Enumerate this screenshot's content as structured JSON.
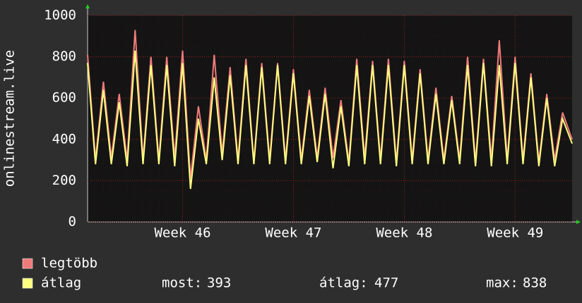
{
  "chart_data": {
    "type": "line",
    "y_label": "onlinestream.live",
    "x": [
      0,
      0.5,
      1,
      1.5,
      2,
      2.5,
      3,
      3.5,
      4,
      4.5,
      5,
      5.5,
      6,
      6.5,
      7,
      7.5,
      8,
      8.5,
      9,
      9.5,
      10,
      10.5,
      11,
      11.5,
      12,
      12.5,
      13,
      13.5,
      14,
      14.5,
      15,
      15.5,
      16,
      16.5,
      17,
      17.5,
      18,
      18.5,
      19,
      19.5,
      20,
      20.5,
      21,
      21.5,
      22,
      22.5,
      23,
      23.5,
      24,
      24.5,
      25,
      25.5,
      26,
      26.5,
      27,
      27.5,
      28,
      28.5,
      29,
      29.5,
      30,
      30.6
    ],
    "series": [
      {
        "name": "legtöbb",
        "color": "#f07a7a",
        "values": [
          810,
          300,
          680,
          310,
          620,
          300,
          930,
          300,
          800,
          300,
          800,
          310,
          830,
          210,
          560,
          300,
          810,
          330,
          750,
          300,
          790,
          290,
          770,
          300,
          770,
          300,
          740,
          300,
          640,
          310,
          650,
          310,
          590,
          290,
          790,
          310,
          780,
          300,
          790,
          290,
          780,
          300,
          740,
          300,
          650,
          300,
          610,
          300,
          800,
          290,
          790,
          300,
          880,
          300,
          800,
          300,
          720,
          290,
          620,
          300,
          530,
          400
        ]
      },
      {
        "name": "átlag",
        "color": "#ffff80",
        "values": [
          770,
          280,
          640,
          280,
          580,
          270,
          830,
          280,
          760,
          280,
          760,
          270,
          770,
          160,
          500,
          280,
          700,
          300,
          710,
          280,
          760,
          280,
          750,
          280,
          760,
          280,
          720,
          280,
          610,
          290,
          620,
          260,
          560,
          270,
          760,
          280,
          760,
          280,
          760,
          270,
          760,
          280,
          720,
          280,
          620,
          280,
          590,
          280,
          760,
          270,
          770,
          270,
          760,
          280,
          770,
          280,
          700,
          270,
          600,
          270,
          500,
          380
        ]
      }
    ],
    "xlim": [
      0,
      30.6
    ],
    "xticks": [
      {
        "value": 6,
        "label": "Week 46"
      },
      {
        "value": 13,
        "label": "Week 47"
      },
      {
        "value": 20,
        "label": "Week 48"
      },
      {
        "value": 27,
        "label": "Week 49"
      }
    ],
    "ylim": [
      0,
      1000
    ],
    "yticks": [
      0,
      200,
      400,
      600,
      800,
      1000
    ],
    "grid": true,
    "stats": [
      {
        "label": "most:",
        "value": 393
      },
      {
        "label": "átlag:",
        "value": 477
      },
      {
        "label": "max:",
        "value": 838
      }
    ]
  }
}
